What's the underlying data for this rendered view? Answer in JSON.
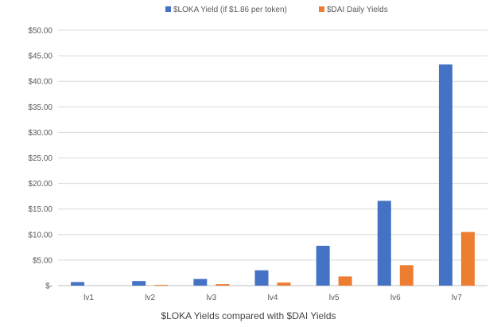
{
  "chart_data": {
    "type": "bar",
    "categories": [
      "lv1",
      "lv2",
      "lv3",
      "lv4",
      "lv5",
      "lv6",
      "lv7"
    ],
    "series": [
      {
        "name": "$LOKA Yield (if $1.86 per token)",
        "color": "#4472C4",
        "values": [
          0.7,
          0.9,
          1.3,
          3.0,
          7.8,
          16.6,
          43.3
        ]
      },
      {
        "name": "$DAI Daily Yields",
        "color": "#ED7D31",
        "values": [
          0.0,
          0.15,
          0.3,
          0.6,
          1.8,
          4.0,
          10.5
        ]
      }
    ],
    "ylim": [
      0,
      50
    ],
    "yticks": [
      0,
      5,
      10,
      15,
      20,
      25,
      30,
      35,
      40,
      45,
      50
    ],
    "ytick_labels": [
      "$-",
      "$5.00",
      "$10.00",
      "$15.00",
      "$20.00",
      "$25.00",
      "$30.00",
      "$35.00",
      "$40.00",
      "$45.00",
      "$50.00"
    ],
    "grid": true,
    "legend_position": "top-center",
    "caption": "$LOKA Yields compared with $DAI Yields"
  }
}
